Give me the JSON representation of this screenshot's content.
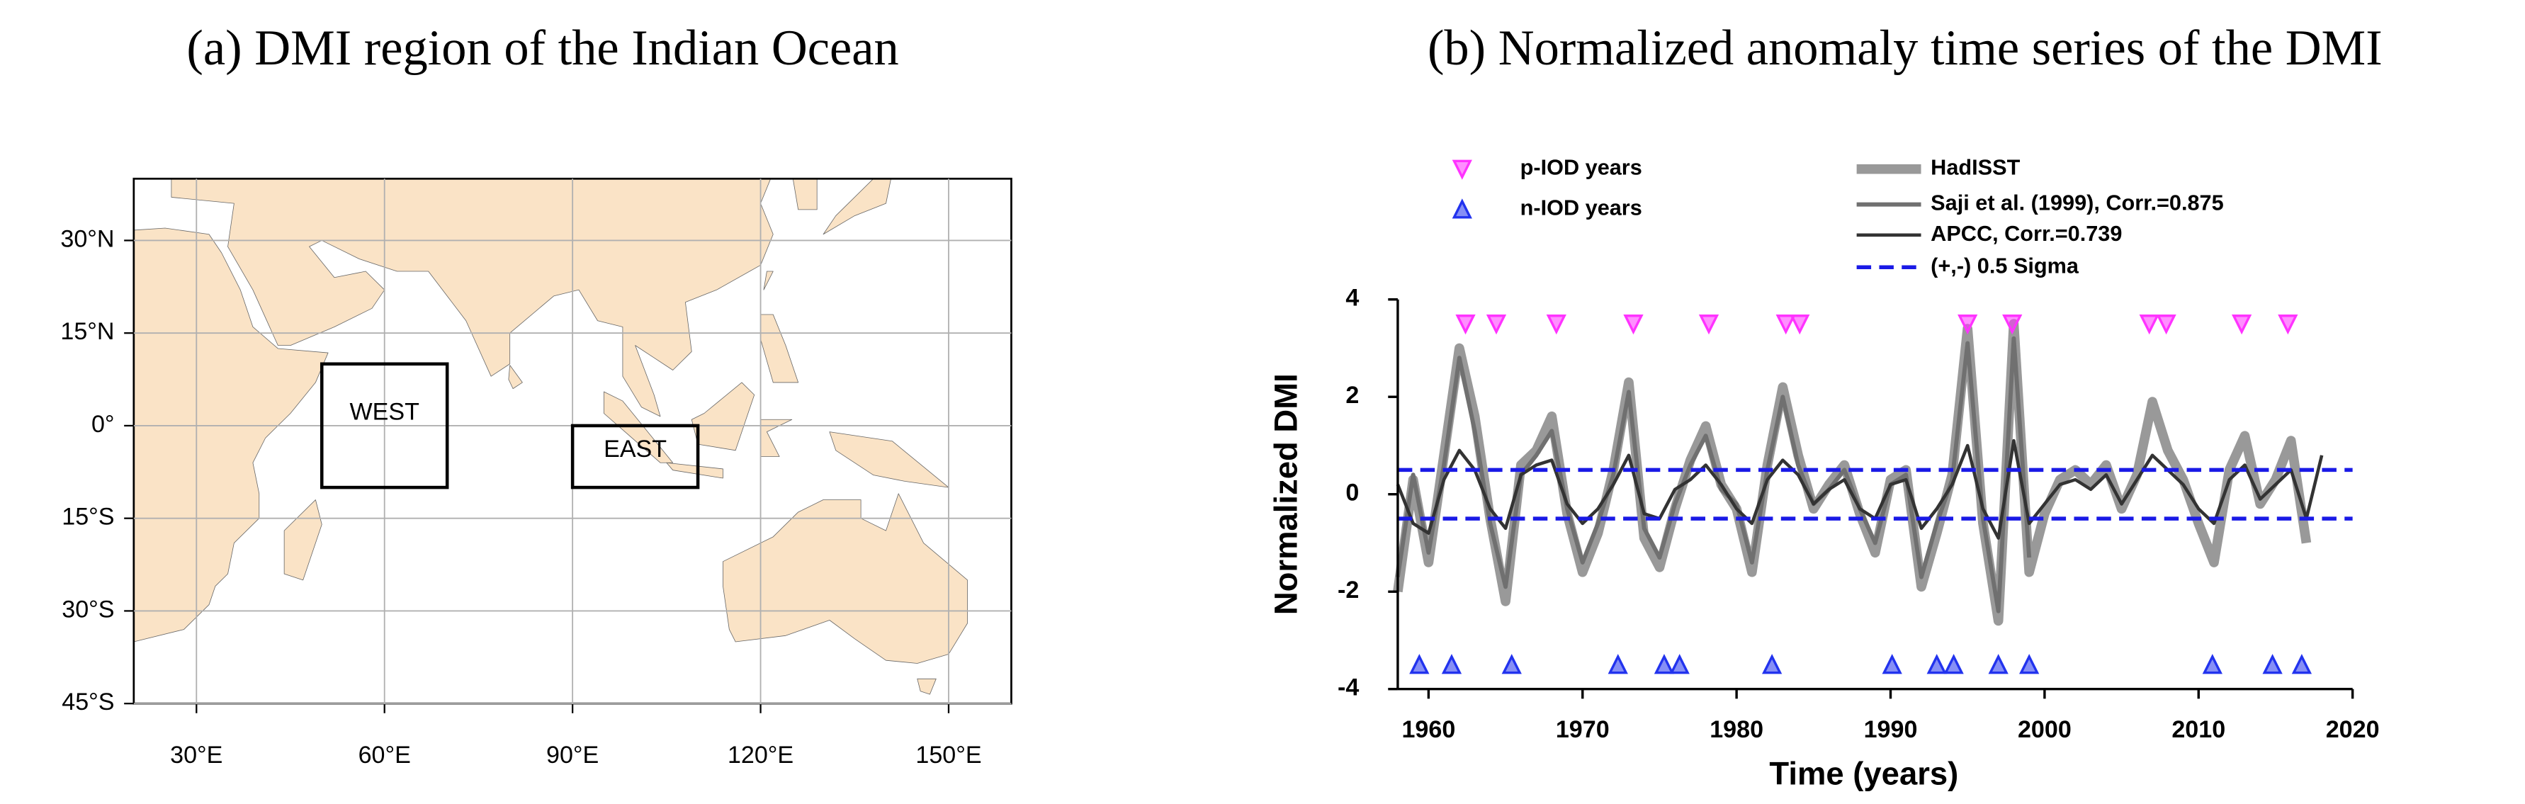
{
  "chart_data": [
    {
      "type": "map",
      "title": "(a) DMI region of the Indian Ocean",
      "xlim": [
        20,
        160
      ],
      "ylim": [
        -45,
        40
      ],
      "xticks": [
        {
          "value": 30,
          "label": "30°E"
        },
        {
          "value": 60,
          "label": "60°E"
        },
        {
          "value": 90,
          "label": "90°E"
        },
        {
          "value": 120,
          "label": "120°E"
        },
        {
          "value": 150,
          "label": "150°E"
        }
      ],
      "yticks": [
        {
          "value": 30,
          "label": "30°N"
        },
        {
          "value": 15,
          "label": "15°N"
        },
        {
          "value": 0,
          "label": "0°"
        },
        {
          "value": -15,
          "label": "15°S"
        },
        {
          "value": -30,
          "label": "30°S"
        },
        {
          "value": -45,
          "label": "45°S"
        }
      ],
      "grid": true,
      "land_color": "#fae3c6",
      "regions": [
        {
          "label": "WEST",
          "lon": [
            50,
            70
          ],
          "lat": [
            -10,
            10
          ]
        },
        {
          "label": "EAST",
          "lon": [
            90,
            110
          ],
          "lat": [
            -10,
            0
          ]
        }
      ]
    },
    {
      "type": "line",
      "title": "(b) Normalized anomaly time series of the DMI",
      "xlabel": "Time (years)",
      "ylabel": "Normalized DMI",
      "xlim": [
        1958,
        2020
      ],
      "ylim": [
        -4,
        4
      ],
      "xticks": [
        1960,
        1970,
        1980,
        1990,
        2000,
        2010,
        2020
      ],
      "yticks": [
        -4,
        -2,
        0,
        2,
        4
      ],
      "series": [
        {
          "name": "HadISST",
          "color": "#999999",
          "x": [
            1958,
            1959,
            1960,
            1961,
            1962,
            1963,
            1964,
            1965,
            1966,
            1967,
            1968,
            1969,
            1970,
            1971,
            1972,
            1973,
            1974,
            1975,
            1976,
            1977,
            1978,
            1979,
            1980,
            1981,
            1982,
            1983,
            1984,
            1985,
            1986,
            1987,
            1988,
            1989,
            1990,
            1991,
            1992,
            1993,
            1994,
            1995,
            1996,
            1997,
            1998,
            1999,
            2000,
            2001,
            2002,
            2003,
            2004,
            2005,
            2006,
            2007,
            2008,
            2009,
            2010,
            2011,
            2012,
            2013,
            2014,
            2015,
            2016,
            2017
          ],
          "values": [
            -2.0,
            0.3,
            -1.4,
            0.8,
            3.0,
            1.6,
            -0.5,
            -2.2,
            0.6,
            0.9,
            1.6,
            -0.4,
            -1.6,
            -0.8,
            0.5,
            2.3,
            -0.9,
            -1.5,
            -0.3,
            0.7,
            1.4,
            0.2,
            -0.3,
            -1.6,
            0.6,
            2.2,
            0.8,
            -0.3,
            0.2,
            0.6,
            -0.4,
            -1.2,
            0.3,
            0.5,
            -1.9,
            -0.8,
            0.4,
            3.4,
            -0.6,
            -2.6,
            3.5,
            -1.6,
            -0.4,
            0.3,
            0.5,
            0.2,
            0.6,
            -0.3,
            0.4,
            1.9,
            0.9,
            0.3,
            -0.6,
            -1.4,
            0.5,
            1.2,
            -0.2,
            0.3,
            1.1,
            -1.0
          ]
        },
        {
          "name": "Saji et al. (1999), Corr.=0.875",
          "color": "#707070",
          "x": [
            1958,
            1959,
            1960,
            1961,
            1962,
            1963,
            1964,
            1965,
            1966,
            1967,
            1968,
            1969,
            1970,
            1971,
            1972,
            1973,
            1974,
            1975,
            1976,
            1977,
            1978,
            1979,
            1980,
            1981,
            1982,
            1983,
            1984,
            1985,
            1986,
            1987,
            1988,
            1989,
            1990,
            1991,
            1992,
            1993,
            1994,
            1995,
            1996,
            1997,
            1998,
            1999
          ],
          "values": [
            -1.7,
            0.4,
            -1.2,
            0.6,
            2.8,
            1.3,
            -0.6,
            -1.9,
            0.4,
            0.8,
            1.3,
            -0.3,
            -1.4,
            -0.6,
            0.4,
            2.1,
            -0.7,
            -1.3,
            -0.2,
            0.6,
            1.2,
            0.1,
            -0.2,
            -1.4,
            0.5,
            2.0,
            0.6,
            -0.2,
            0.1,
            0.5,
            -0.3,
            -1.0,
            0.2,
            0.4,
            -1.7,
            -0.6,
            0.3,
            3.1,
            -0.5,
            -2.4,
            3.2,
            -1.3
          ]
        },
        {
          "name": "APCC, Corr.=0.739",
          "color": "#333333",
          "x": [
            1958,
            1959,
            1960,
            1961,
            1962,
            1963,
            1964,
            1965,
            1966,
            1967,
            1968,
            1969,
            1970,
            1971,
            1972,
            1973,
            1974,
            1975,
            1976,
            1977,
            1978,
            1979,
            1980,
            1981,
            1982,
            1983,
            1984,
            1985,
            1986,
            1987,
            1988,
            1989,
            1990,
            1991,
            1992,
            1993,
            1994,
            1995,
            1996,
            1997,
            1998,
            1999,
            2000,
            2001,
            2002,
            2003,
            2004,
            2005,
            2006,
            2007,
            2008,
            2009,
            2010,
            2011,
            2012,
            2013,
            2014,
            2015,
            2016,
            2017,
            2018
          ],
          "values": [
            0.2,
            -0.6,
            -0.8,
            0.3,
            0.9,
            0.5,
            -0.3,
            -0.7,
            0.4,
            0.6,
            0.7,
            -0.2,
            -0.6,
            -0.3,
            0.2,
            0.8,
            -0.4,
            -0.5,
            0.1,
            0.3,
            0.6,
            0.2,
            -0.3,
            -0.6,
            0.3,
            0.7,
            0.4,
            -0.2,
            0.1,
            0.3,
            -0.3,
            -0.5,
            0.2,
            0.3,
            -0.7,
            -0.3,
            0.2,
            1.0,
            -0.3,
            -0.9,
            1.1,
            -0.6,
            -0.2,
            0.2,
            0.3,
            0.1,
            0.4,
            -0.2,
            0.3,
            0.8,
            0.5,
            0.2,
            -0.3,
            -0.6,
            0.3,
            0.6,
            -0.1,
            0.2,
            0.5,
            -0.5,
            0.8
          ]
        }
      ],
      "hlines": {
        "name": "(+,-) 0.5 Sigma",
        "color": "#1a1ae6",
        "values": [
          0.5,
          -0.5
        ]
      },
      "markers": [
        {
          "name": "p-IOD years",
          "color": "#ff33ff",
          "shape": "down",
          "x": [
            1962.4,
            1964.4,
            1968.3,
            1973.3,
            1978.2,
            1983.2,
            1984.1,
            1995.0,
            1997.9,
            2006.8,
            2007.9,
            2012.8,
            2015.8
          ],
          "y": [
            3.5,
            3.5,
            3.5,
            3.5,
            3.5,
            3.5,
            3.5,
            3.5,
            3.5,
            3.5,
            3.5,
            3.5,
            3.5
          ]
        },
        {
          "name": "n-IOD years",
          "color": "#2233ee",
          "shape": "up",
          "x": [
            1959.4,
            1961.5,
            1965.4,
            1972.3,
            1975.3,
            1976.3,
            1982.3,
            1990.1,
            1993.0,
            1994.1,
            1997.0,
            1999.0,
            2010.9,
            2014.8,
            2016.7
          ],
          "y": [
            -3.5,
            -3.5,
            -3.5,
            -3.5,
            -3.5,
            -3.5,
            -3.5,
            -3.5,
            -3.5,
            -3.5,
            -3.5,
            -3.5,
            -3.5,
            -3.5,
            -3.5
          ]
        }
      ]
    }
  ]
}
